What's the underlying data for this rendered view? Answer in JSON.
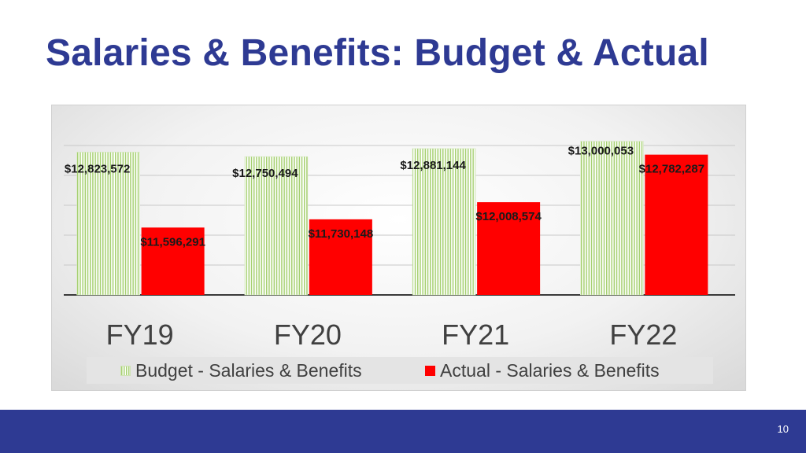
{
  "slide": {
    "title": "Salaries & Benefits:  Budget & Actual",
    "page_number": "10"
  },
  "colors": {
    "title": "#2e3a93",
    "footer": "#2e3a93",
    "budget_stripe": "#a6d071",
    "actual": "#ff0000"
  },
  "chart_data": {
    "type": "bar",
    "categories": [
      "FY19",
      "FY20",
      "FY21",
      "FY22"
    ],
    "series": [
      {
        "name": "Budget - Salaries & Benefits",
        "values": [
          12823572,
          12750494,
          12881144,
          13000053
        ],
        "labels": [
          "$12,823,572",
          "$12,750,494",
          "$12,881,144",
          "$13,000,053"
        ],
        "fill": "vertical-stripe-green"
      },
      {
        "name": "Actual - Salaries & Benefits",
        "values": [
          11596291,
          11730148,
          12008574,
          12782287
        ],
        "labels": [
          "$11,596,291",
          "$11,730,148",
          "$12,008,574",
          "$12,782,287"
        ],
        "fill": "solid-red"
      }
    ],
    "ylim": [
      10500000,
      13200000
    ],
    "grid": true,
    "legend_position": "bottom"
  }
}
